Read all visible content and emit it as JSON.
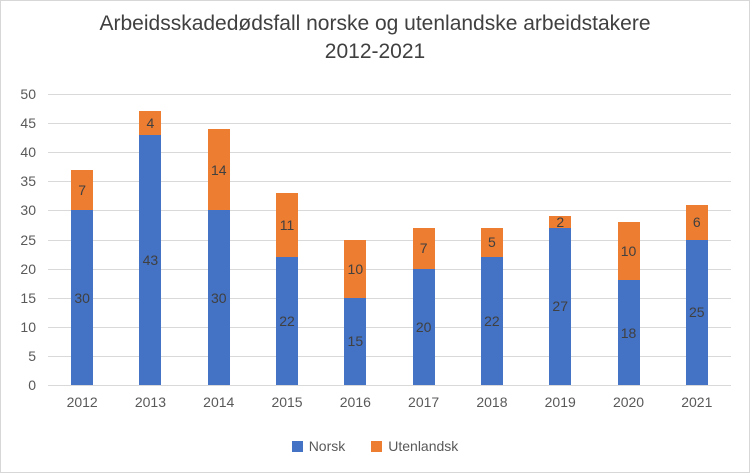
{
  "chart_data": {
    "type": "bar",
    "stacked": true,
    "title": "Arbeidsskadedødsfall norske og utenlandske arbeidstakere 2012-2021",
    "title_lines": [
      "Arbeidsskadedødsfall norske og utenlandske arbeidstakere",
      "2012-2021"
    ],
    "categories": [
      "2012",
      "2013",
      "2014",
      "2015",
      "2016",
      "2017",
      "2018",
      "2019",
      "2020",
      "2021"
    ],
    "series": [
      {
        "name": "Norsk",
        "color": "#4472C4",
        "values": [
          30,
          43,
          30,
          22,
          15,
          20,
          22,
          27,
          18,
          25
        ]
      },
      {
        "name": "Utenlandsk",
        "color": "#ED7D31",
        "values": [
          7,
          4,
          14,
          11,
          10,
          7,
          5,
          2,
          10,
          6
        ]
      }
    ],
    "totals": [
      37,
      47,
      44,
      33,
      25,
      27,
      27,
      29,
      28,
      31
    ],
    "xlabel": "",
    "ylabel": "",
    "ylim": [
      0,
      50
    ],
    "ytick_step": 5,
    "yticks": [
      0,
      5,
      10,
      15,
      20,
      25,
      30,
      35,
      40,
      45,
      50
    ],
    "grid": true,
    "gridline_color": "#D9D9D9",
    "label_color": "#404040",
    "axis_text_color": "#595959",
    "legend_position": "bottom"
  }
}
